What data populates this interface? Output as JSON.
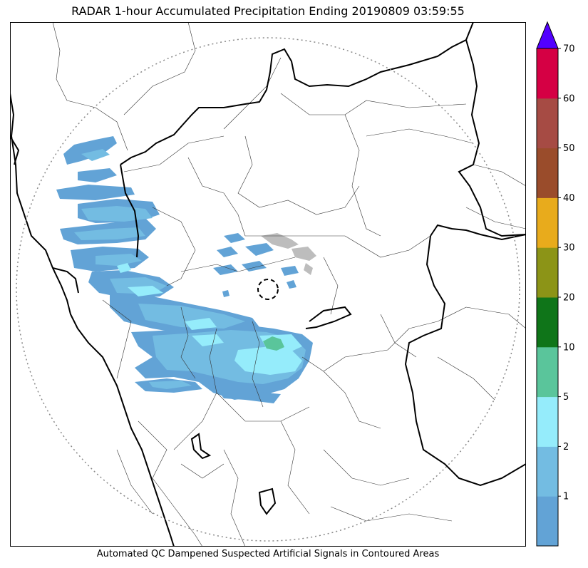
{
  "title": "RADAR 1-hour Accumulated Precipitation Ending 20190809 03:59:55",
  "footer": "Automated QC Dampened Suspected Artificial Signals in Contoured Areas",
  "colorbar": {
    "bins": [
      {
        "label": "",
        "color": "#62a3d6"
      },
      {
        "label": "1",
        "color": "#73bce2"
      },
      {
        "label": "2",
        "color": "#95ecfb"
      },
      {
        "label": "5",
        "color": "#5ac59b"
      },
      {
        "label": "10",
        "color": "#0f7519"
      },
      {
        "label": "20",
        "color": "#8c9417"
      },
      {
        "label": "30",
        "color": "#e8ab1c"
      },
      {
        "label": "40",
        "color": "#9a4c2b"
      },
      {
        "label": "50",
        "color": "#a64b44"
      },
      {
        "label": "60",
        "color": "#d50044"
      }
    ],
    "top_label": "70",
    "extend_color": "#5200ff"
  },
  "colors": {
    "boundary_major": "#000000",
    "boundary_minor": "#333333",
    "range_ring": "#888888",
    "qc_gray": "#bdbdbd"
  }
}
